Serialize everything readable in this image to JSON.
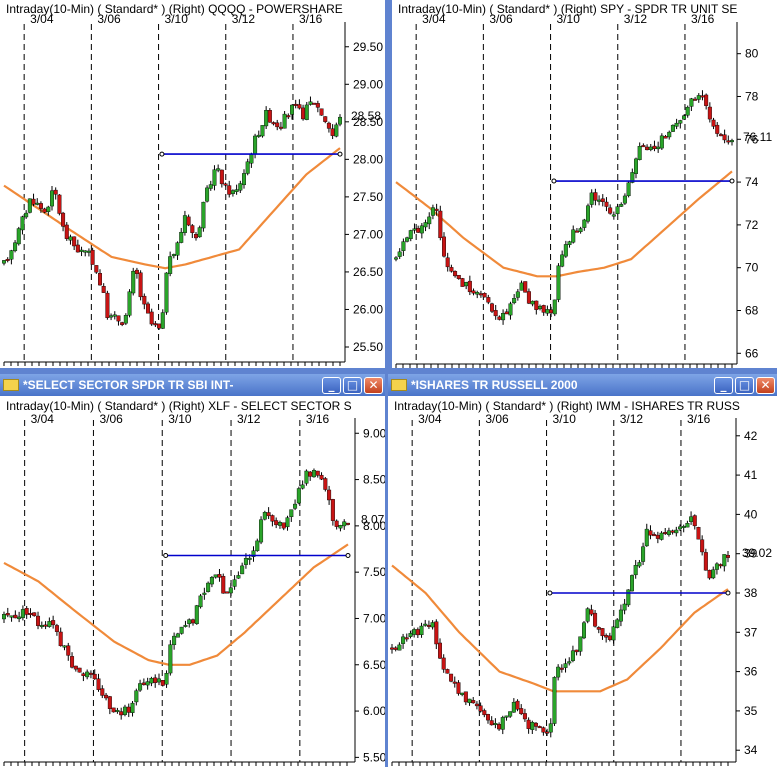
{
  "colors": {
    "up": "#2aa42a",
    "down": "#c81414",
    "ma": "#f08a3a",
    "hline": "#0000cc",
    "grid": "#000000"
  },
  "panels": [
    {
      "id": "qqqq",
      "window_title": "",
      "header": "Intraday(10-Min) ( Standard* )   (Right)   QQQQ - POWERSHARE",
      "dates": [
        "3/04",
        "3/06",
        "3/10",
        "3/12",
        "3/16"
      ],
      "y_ticks": [
        "29.50",
        "29.00",
        "28.50",
        "28.00",
        "27.50",
        "27.00",
        "26.50",
        "26.00",
        "25.50"
      ],
      "last_price": "28.58"
    },
    {
      "id": "spy",
      "window_title": "",
      "header": "Intraday(10-Min) ( Standard* )   (Right)   SPY - SPDR TR UNIT SE",
      "dates": [
        "3/04",
        "3/06",
        "3/10",
        "3/12",
        "3/16"
      ],
      "y_ticks": [
        "80",
        "78",
        "76",
        "74",
        "72",
        "70",
        "68",
        "66"
      ],
      "last_price": "76.11"
    },
    {
      "id": "xlf",
      "window_title": "*SELECT SECTOR SPDR TR SBI INT-",
      "header": "Intraday(10-Min) ( Standard* )   (Right)   XLF - SELECT SECTOR S",
      "dates": [
        "3/04",
        "3/06",
        "3/10",
        "3/12",
        "3/16"
      ],
      "y_ticks": [
        "9.00",
        "8.50",
        "8.00",
        "7.50",
        "7.00",
        "6.50",
        "6.00",
        "5.50"
      ],
      "last_price": "8.07"
    },
    {
      "id": "iwm",
      "window_title": "*ISHARES TR RUSSELL 2000",
      "header": "Intraday(10-Min) ( Standard* )   (Right)   IWM - ISHARES TR RUSS",
      "dates": [
        "3/04",
        "3/06",
        "3/10",
        "3/12",
        "3/16"
      ],
      "y_ticks": [
        "42",
        "41",
        "40",
        "39",
        "38",
        "37",
        "36",
        "35",
        "34"
      ],
      "last_price": "39.02"
    }
  ],
  "chart_data": [
    {
      "type": "candlestick",
      "title": "QQQQ - POWERSHARE",
      "interval": "Intraday(10-Min)",
      "ylim": [
        25.3,
        29.75
      ],
      "x_labels": [
        "3/04",
        "3/06",
        "3/10",
        "3/12",
        "3/16"
      ],
      "price_path": [
        [
          0,
          26.6
        ],
        [
          4,
          27.0
        ],
        [
          8,
          27.5
        ],
        [
          12,
          27.3
        ],
        [
          15,
          27.6
        ],
        [
          18,
          27.0
        ],
        [
          22,
          26.8
        ],
        [
          26,
          26.7
        ],
        [
          29,
          26.3
        ],
        [
          31,
          25.9
        ],
        [
          36,
          25.85
        ],
        [
          39,
          26.6
        ],
        [
          41,
          26.1
        ],
        [
          44,
          25.8
        ],
        [
          47,
          25.7
        ],
        [
          48,
          26.5
        ],
        [
          52,
          26.9
        ],
        [
          54,
          27.3
        ],
        [
          57,
          26.9
        ],
        [
          60,
          27.5
        ],
        [
          63,
          27.9
        ],
        [
          66,
          27.6
        ],
        [
          69,
          27.55
        ],
        [
          72,
          27.9
        ],
        [
          75,
          28.3
        ],
        [
          78,
          28.6
        ],
        [
          82,
          28.45
        ],
        [
          86,
          28.7
        ],
        [
          89,
          28.6
        ],
        [
          92,
          28.8
        ],
        [
          96,
          28.5
        ],
        [
          98,
          28.3
        ],
        [
          100,
          28.6
        ]
      ],
      "ma_path": [
        [
          0,
          27.65
        ],
        [
          10,
          27.35
        ],
        [
          20,
          27.05
        ],
        [
          32,
          26.7
        ],
        [
          42,
          26.6
        ],
        [
          48,
          26.55
        ],
        [
          54,
          26.6
        ],
        [
          62,
          26.7
        ],
        [
          70,
          26.8
        ],
        [
          80,
          27.3
        ],
        [
          90,
          27.8
        ],
        [
          100,
          28.15
        ]
      ],
      "horizontal_line": {
        "value": 28.07,
        "from": 47,
        "to": 100
      },
      "last": 28.58
    },
    {
      "type": "candlestick",
      "title": "SPY - SPDR TR UNIT SE",
      "interval": "Intraday(10-Min)",
      "ylim": [
        65.5,
        81.2
      ],
      "x_labels": [
        "3/04",
        "3/06",
        "3/10",
        "3/12",
        "3/16"
      ],
      "price_path": [
        [
          0,
          70.5
        ],
        [
          4,
          71.5
        ],
        [
          8,
          72.0
        ],
        [
          12,
          72.9
        ],
        [
          14,
          70.6
        ],
        [
          18,
          69.6
        ],
        [
          22,
          69.0
        ],
        [
          26,
          68.5
        ],
        [
          29,
          68.0
        ],
        [
          31,
          67.5
        ],
        [
          34,
          68.2
        ],
        [
          37,
          69.2
        ],
        [
          40,
          68.3
        ],
        [
          44,
          68.0
        ],
        [
          47,
          67.9
        ],
        [
          48,
          69.8
        ],
        [
          52,
          71.5
        ],
        [
          55,
          71.8
        ],
        [
          58,
          73.5
        ],
        [
          61,
          73.0
        ],
        [
          64,
          72.5
        ],
        [
          67,
          73.0
        ],
        [
          70,
          74.5
        ],
        [
          73,
          76.0
        ],
        [
          75,
          75.5
        ],
        [
          78,
          75.8
        ],
        [
          82,
          76.6
        ],
        [
          86,
          77.2
        ],
        [
          89,
          78.0
        ],
        [
          92,
          77.8
        ],
        [
          95,
          76.2
        ],
        [
          97,
          76.0
        ],
        [
          100,
          76.11
        ]
      ],
      "ma_path": [
        [
          0,
          74.0
        ],
        [
          10,
          72.8
        ],
        [
          20,
          71.4
        ],
        [
          32,
          70.0
        ],
        [
          42,
          69.6
        ],
        [
          48,
          69.6
        ],
        [
          54,
          69.8
        ],
        [
          62,
          70.0
        ],
        [
          70,
          70.4
        ],
        [
          80,
          71.8
        ],
        [
          90,
          73.2
        ],
        [
          100,
          74.5
        ]
      ],
      "horizontal_line": {
        "value": 74.05,
        "from": 47,
        "to": 100
      },
      "last": 76.11
    },
    {
      "type": "candlestick",
      "title": "XLF - SELECT SECTOR S",
      "interval": "Intraday(10-Min)",
      "ylim": [
        5.45,
        9.1
      ],
      "x_labels": [
        "3/04",
        "3/06",
        "3/10",
        "3/12",
        "3/16"
      ],
      "price_path": [
        [
          0,
          7.0
        ],
        [
          4,
          7.05
        ],
        [
          7,
          7.1
        ],
        [
          10,
          6.95
        ],
        [
          14,
          7.0
        ],
        [
          17,
          6.7
        ],
        [
          20,
          6.5
        ],
        [
          24,
          6.4
        ],
        [
          27,
          6.3
        ],
        [
          30,
          6.1
        ],
        [
          33,
          6.0
        ],
        [
          36,
          6.0
        ],
        [
          38,
          6.2
        ],
        [
          41,
          6.3
        ],
        [
          44,
          6.35
        ],
        [
          47,
          6.3
        ],
        [
          48,
          6.7
        ],
        [
          52,
          6.9
        ],
        [
          55,
          7.0
        ],
        [
          58,
          7.3
        ],
        [
          61,
          7.5
        ],
        [
          64,
          7.3
        ],
        [
          67,
          7.4
        ],
        [
          70,
          7.6
        ],
        [
          73,
          7.8
        ],
        [
          76,
          8.2
        ],
        [
          79,
          8.0
        ],
        [
          82,
          8.0
        ],
        [
          85,
          8.3
        ],
        [
          88,
          8.55
        ],
        [
          91,
          8.6
        ],
        [
          94,
          8.4
        ],
        [
          96,
          8.0
        ],
        [
          100,
          8.07
        ]
      ],
      "ma_path": [
        [
          0,
          7.6
        ],
        [
          10,
          7.4
        ],
        [
          20,
          7.1
        ],
        [
          32,
          6.75
        ],
        [
          42,
          6.55
        ],
        [
          48,
          6.5
        ],
        [
          54,
          6.5
        ],
        [
          62,
          6.6
        ],
        [
          70,
          6.85
        ],
        [
          80,
          7.2
        ],
        [
          90,
          7.55
        ],
        [
          100,
          7.8
        ]
      ],
      "horizontal_line": {
        "value": 7.68,
        "from": 47,
        "to": 100
      },
      "last": 8.07
    },
    {
      "type": "candlestick",
      "title": "IWM - ISHARES TR RUSS",
      "interval": "Intraday(10-Min)",
      "ylim": [
        33.7,
        42.3
      ],
      "x_labels": [
        "3/04",
        "3/06",
        "3/10",
        "3/12",
        "3/16"
      ],
      "price_path": [
        [
          0,
          36.6
        ],
        [
          4,
          36.9
        ],
        [
          8,
          37.0
        ],
        [
          12,
          37.2
        ],
        [
          15,
          36.0
        ],
        [
          18,
          35.7
        ],
        [
          22,
          35.3
        ],
        [
          26,
          35.0
        ],
        [
          29,
          34.8
        ],
        [
          32,
          34.6
        ],
        [
          35,
          35.0
        ],
        [
          37,
          35.2
        ],
        [
          40,
          34.7
        ],
        [
          44,
          34.5
        ],
        [
          47,
          34.3
        ],
        [
          48,
          35.9
        ],
        [
          52,
          36.3
        ],
        [
          55,
          36.5
        ],
        [
          58,
          37.6
        ],
        [
          61,
          37.2
        ],
        [
          64,
          36.8
        ],
        [
          67,
          37.2
        ],
        [
          70,
          38.0
        ],
        [
          73,
          38.7
        ],
        [
          76,
          39.6
        ],
        [
          79,
          39.4
        ],
        [
          82,
          39.6
        ],
        [
          86,
          39.7
        ],
        [
          89,
          40.0
        ],
        [
          92,
          39.2
        ],
        [
          94,
          38.2
        ],
        [
          96,
          38.6
        ],
        [
          100,
          39.02
        ]
      ],
      "ma_path": [
        [
          0,
          38.7
        ],
        [
          10,
          38.0
        ],
        [
          20,
          37.0
        ],
        [
          32,
          36.0
        ],
        [
          42,
          35.7
        ],
        [
          48,
          35.5
        ],
        [
          54,
          35.5
        ],
        [
          62,
          35.5
        ],
        [
          70,
          35.8
        ],
        [
          80,
          36.6
        ],
        [
          90,
          37.5
        ],
        [
          100,
          38.1
        ]
      ],
      "horizontal_line": {
        "value": 38.0,
        "from": 47,
        "to": 100
      },
      "last": 39.02
    }
  ]
}
